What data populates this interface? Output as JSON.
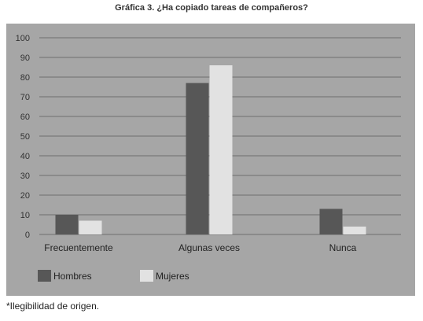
{
  "chart_data": {
    "type": "bar",
    "title": "Gráfica 3. ¿Ha copiado tareas de compañeros?",
    "categories": [
      "Frecuentemente",
      "Algunas veces",
      "Nunca"
    ],
    "series": [
      {
        "name": "Hombres",
        "values": [
          10,
          77,
          13
        ],
        "color": "#575757"
      },
      {
        "name": "Mujeres",
        "values": [
          7,
          86,
          4
        ],
        "color": "#e2e2e2"
      }
    ],
    "yticks": [
      0,
      10,
      20,
      30,
      40,
      50,
      60,
      70,
      80,
      90,
      100
    ],
    "ylim": [
      0,
      100
    ],
    "grid": true,
    "legend_position": "bottom-left"
  },
  "colors": {
    "panel_background": "#a6a6a6",
    "gridline": "#6e6e6e"
  },
  "footnote": "*Ilegibilidad de origen."
}
